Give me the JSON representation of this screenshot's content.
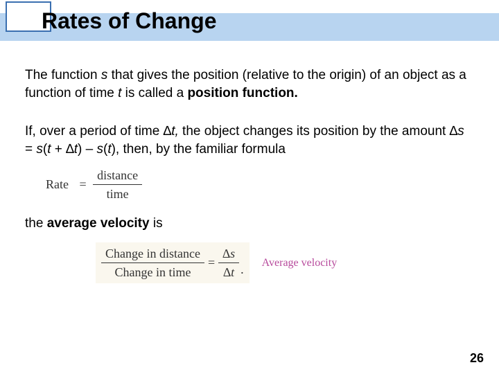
{
  "title": "Rates of Change",
  "pageNumber": "26",
  "para1": {
    "t1": "The function ",
    "s": "s",
    "t2": " that gives the position (relative to the origin) of an object as a function of time ",
    "tvar": "t",
    "t3": " is called a ",
    "bold": "position function."
  },
  "para2": {
    "t1": "If, over a period of time ",
    "dt1": "∆",
    "dt2": "t,",
    "t2": " the object changes its position by the amount ",
    "ds1": "∆",
    "ds2": "s",
    "t3": " = ",
    "s1": "s",
    "lp": "(",
    "tv1": "t",
    "t4": " + ",
    "dt3": "∆",
    "tv2": "t",
    "rp": ") – ",
    "s2": "s",
    "lp2": "(",
    "tv3": "t",
    "rp2": "), then, by the familiar formula"
  },
  "rateEq": {
    "lhs": "Rate",
    "num": "distance",
    "den": "time"
  },
  "para3": {
    "t1": "the ",
    "bold": "average velocity",
    "t2": " is"
  },
  "avgEq": {
    "num1": "Change in distance",
    "den1": "Change in time",
    "num2": "∆s",
    "den2": "∆t",
    "period": "."
  },
  "avgLabel": "Average velocity",
  "colors": {
    "band": "#b8d4f0",
    "notchBorder": "#3a6fb0",
    "eqBg": "#faf7ee",
    "labelColor": "#b74a9c"
  },
  "fonts": {
    "title_pt": 32,
    "body_pt": 19,
    "eq_pt": 18,
    "label_pt": 16,
    "pagenum_pt": 18
  }
}
